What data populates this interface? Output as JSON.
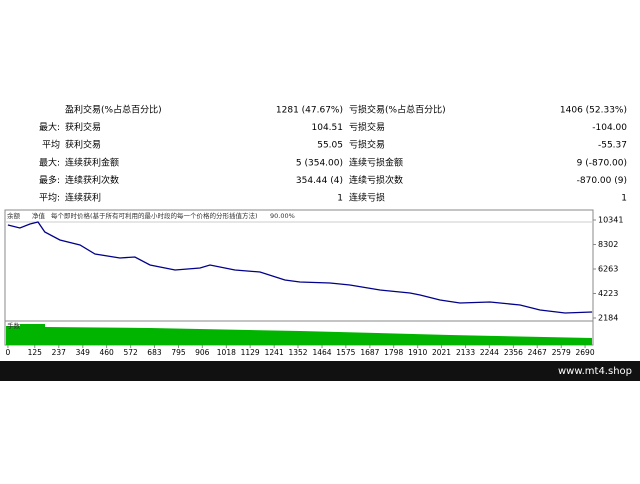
{
  "report": {
    "rows": [
      {
        "win_name": "盈利交易(%占总百分比)",
        "win_value": "1281 (47.67%)",
        "loss_name": "亏损交易(%占总百分比)",
        "loss_value": "1406 (52.33%)"
      },
      {
        "label": "最大:",
        "win_name": "获利交易",
        "win_value": "104.51",
        "loss_name": "亏损交易",
        "loss_value": "-104.00"
      },
      {
        "label": "平均",
        "win_name": "获利交易",
        "win_value": "55.05",
        "loss_name": "亏损交易",
        "loss_value": "-55.37"
      },
      {
        "label": "最大:",
        "win_name": "连续获利金额",
        "win_value": "5 (354.00)",
        "loss_name": "连续亏损金额",
        "loss_value": "9 (-870.00)"
      },
      {
        "label": "最多:",
        "win_name": "连续获利次数",
        "win_value": "354.44 (4)",
        "loss_name": "连续亏损次数",
        "loss_value": "-870.00 (9)"
      },
      {
        "label": "平均:",
        "win_name": "连续获利",
        "win_value": "1",
        "loss_name": "连续亏损",
        "loss_value": "1"
      }
    ]
  },
  "chart_data": {
    "type": "line",
    "equity_label": "净值",
    "model": "每个即时价格(基于所有可利用的最小时段的每一个价格的分形插值方法)",
    "quality": "90.00%",
    "lots_label": "手数",
    "x": [
      0,
      56,
      103,
      140,
      172,
      242,
      336,
      406,
      522,
      592,
      662,
      779,
      895,
      942,
      1058,
      1175,
      1291,
      1361,
      1501,
      1594,
      1734,
      1874,
      1921,
      2014,
      2107,
      2247,
      2387,
      2480,
      2597,
      2723
    ],
    "series": [
      {
        "name": "余额",
        "color": "#00008b",
        "values": [
          9925,
          9675,
          10008,
          10175,
          9343,
          8677,
          8261,
          7512,
          7179,
          7263,
          6597,
          6181,
          6347,
          6597,
          6181,
          6015,
          5349,
          5183,
          5099,
          4933,
          4517,
          4267,
          4101,
          3685,
          3435,
          3519,
          3269,
          2853,
          2603,
          2686
        ]
      }
    ],
    "xlim": [
      -9,
      2727
    ],
    "ylim": [
      2018,
      11007
    ],
    "xticks": [
      0,
      125,
      237,
      349,
      460,
      572,
      683,
      795,
      906,
      1018,
      1129,
      1241,
      1352,
      1464,
      1575,
      1687,
      1798,
      1910,
      2021,
      2133,
      2244,
      2356,
      2467,
      2579,
      2690
    ],
    "yticks": [
      2184,
      4223,
      6263,
      8302,
      10341
    ]
  },
  "footer": {
    "site": "www.mt4.shop"
  }
}
